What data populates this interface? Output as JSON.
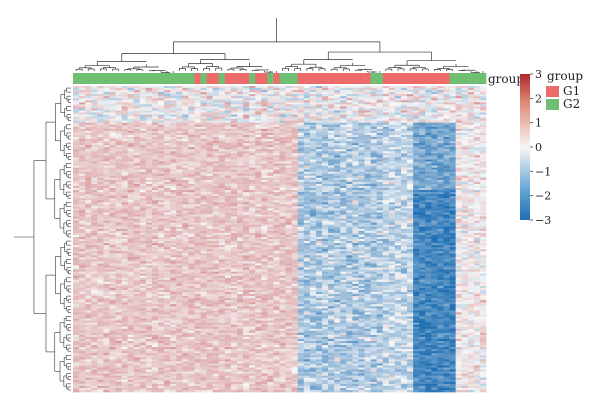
{
  "chart_data": {
    "type": "heatmap",
    "title": "",
    "annotation_label": "group",
    "legend": {
      "title": "group",
      "entries": [
        {
          "label": "G1",
          "color": "#ee6b6b"
        },
        {
          "label": "G2",
          "color": "#6fbf73"
        }
      ],
      "placement": "right"
    },
    "colorbar": {
      "range": [
        -3,
        3
      ],
      "ticks": [
        "3",
        "2",
        "1",
        "0",
        "−1",
        "−2",
        "−3"
      ],
      "colors": {
        "low": "#1f6fb3",
        "mid": "#f7f7f7",
        "high": "#b3282d"
      }
    },
    "group_colors": {
      "G1": "#ee6b6b",
      "G2": "#6fbf73"
    },
    "column_groups": [
      "G2",
      "G2",
      "G2",
      "G2",
      "G2",
      "G2",
      "G2",
      "G2",
      "G2",
      "G2",
      "G2",
      "G2",
      "G2",
      "G2",
      "G2",
      "G2",
      "G2",
      "G2",
      "G2",
      "G2",
      "G1",
      "G2",
      "G1",
      "G1",
      "G2",
      "G1",
      "G1",
      "G1",
      "G1",
      "G2",
      "G1",
      "G1",
      "G2",
      "G1",
      "G2",
      "G2",
      "G2",
      "G1",
      "G1",
      "G1",
      "G1",
      "G1",
      "G1",
      "G1",
      "G1",
      "G1",
      "G1",
      "G1",
      "G1",
      "G2",
      "G2",
      "G1",
      "G1",
      "G1",
      "G1",
      "G1",
      "G1",
      "G1",
      "G1",
      "G1",
      "G1",
      "G1",
      "G2",
      "G2",
      "G2",
      "G2",
      "G2",
      "G2"
    ],
    "n_rows": 150,
    "value_range": [
      -3,
      3
    ],
    "row_dendrogram": true,
    "column_dendrogram": true
  }
}
